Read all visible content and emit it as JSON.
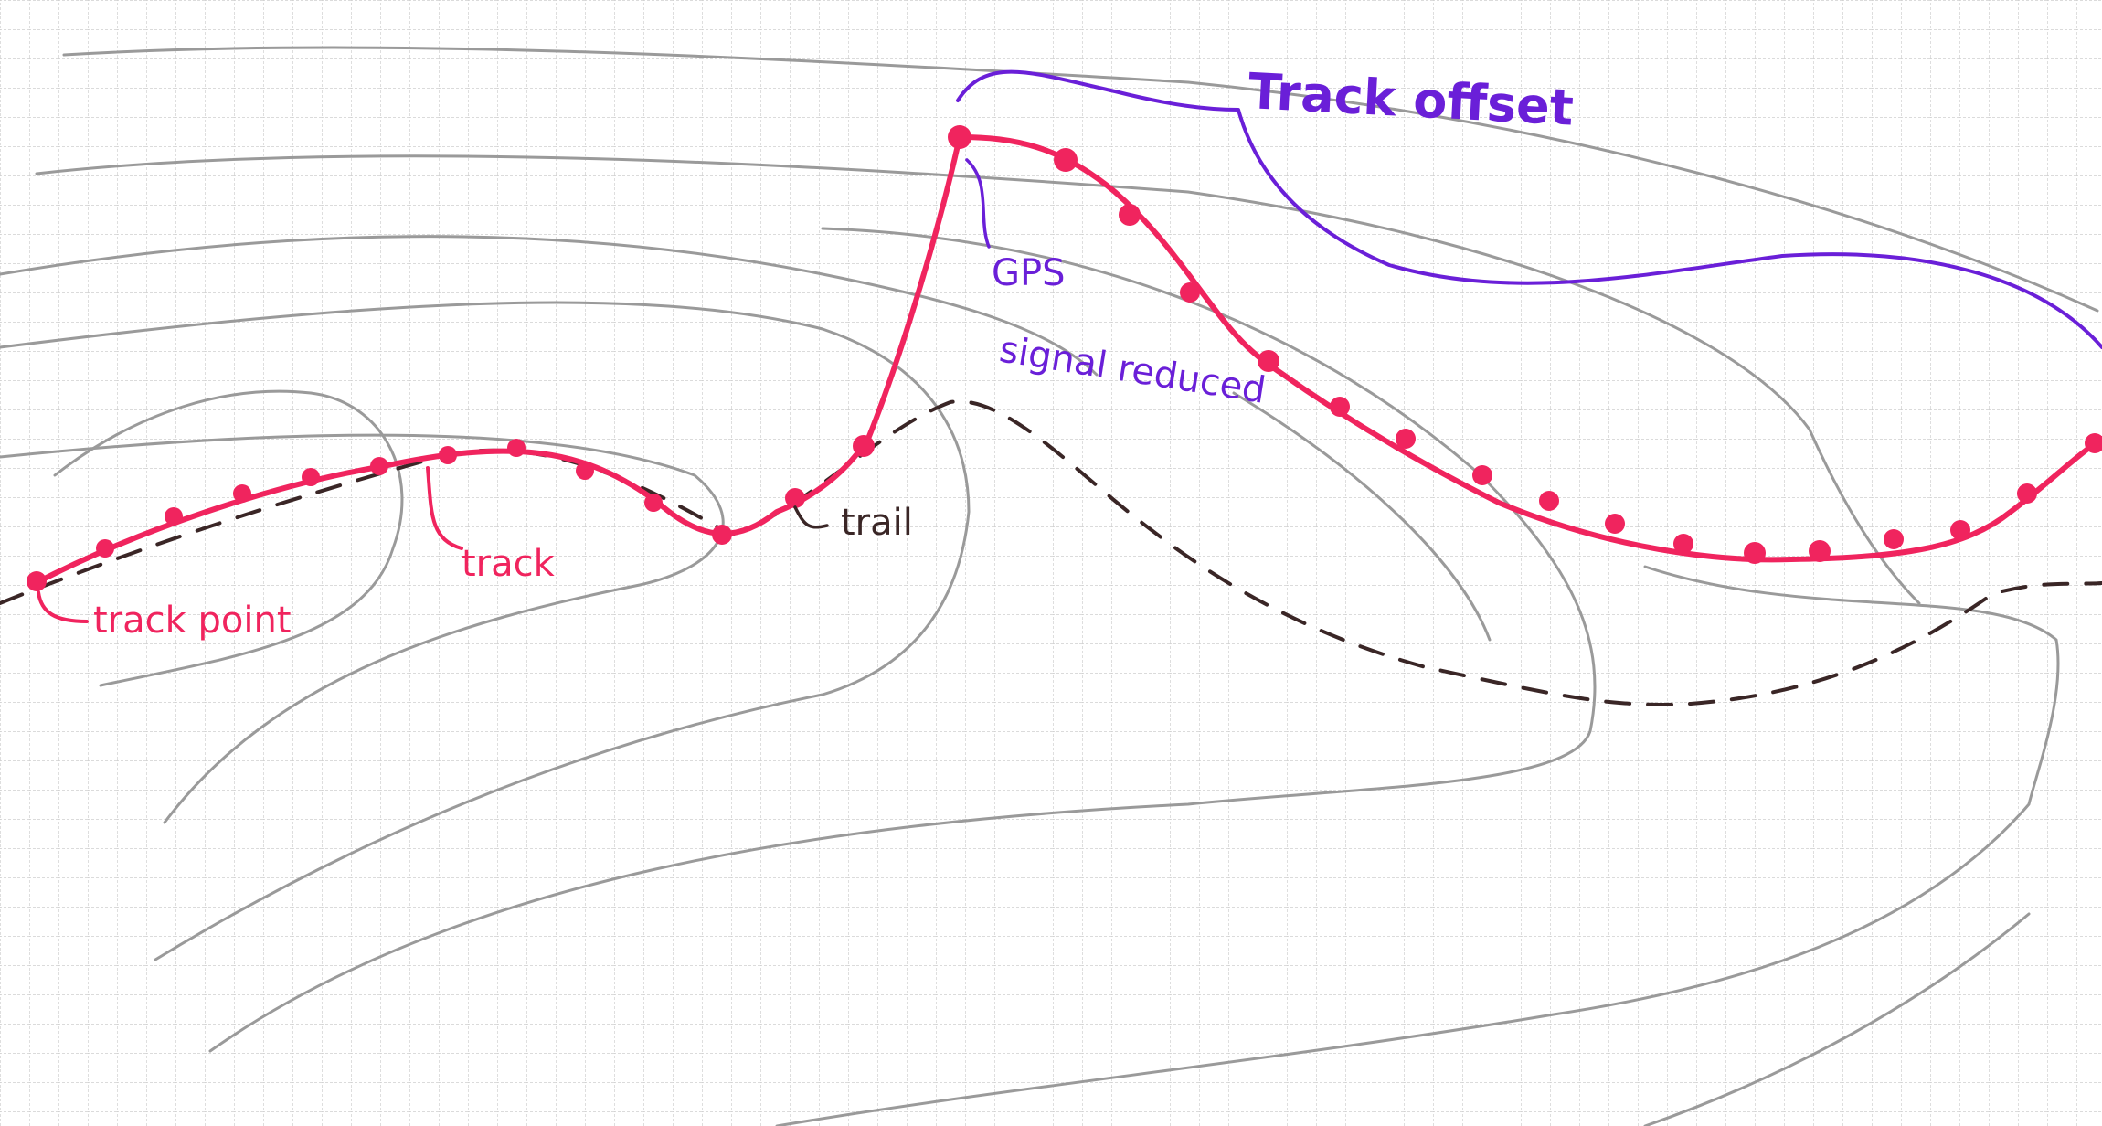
{
  "labels": {
    "track_point": "track point",
    "track": "track",
    "trail": "trail",
    "gps_line1": "GPS",
    "gps_line2": "signal reduced",
    "track_offset": "Track offset"
  },
  "colors": {
    "grid": "#c9c9c9",
    "contour": "#9a9a9a",
    "track": "#f0245e",
    "trail": "#3a2626",
    "annotation": "#6a1fd8"
  }
}
